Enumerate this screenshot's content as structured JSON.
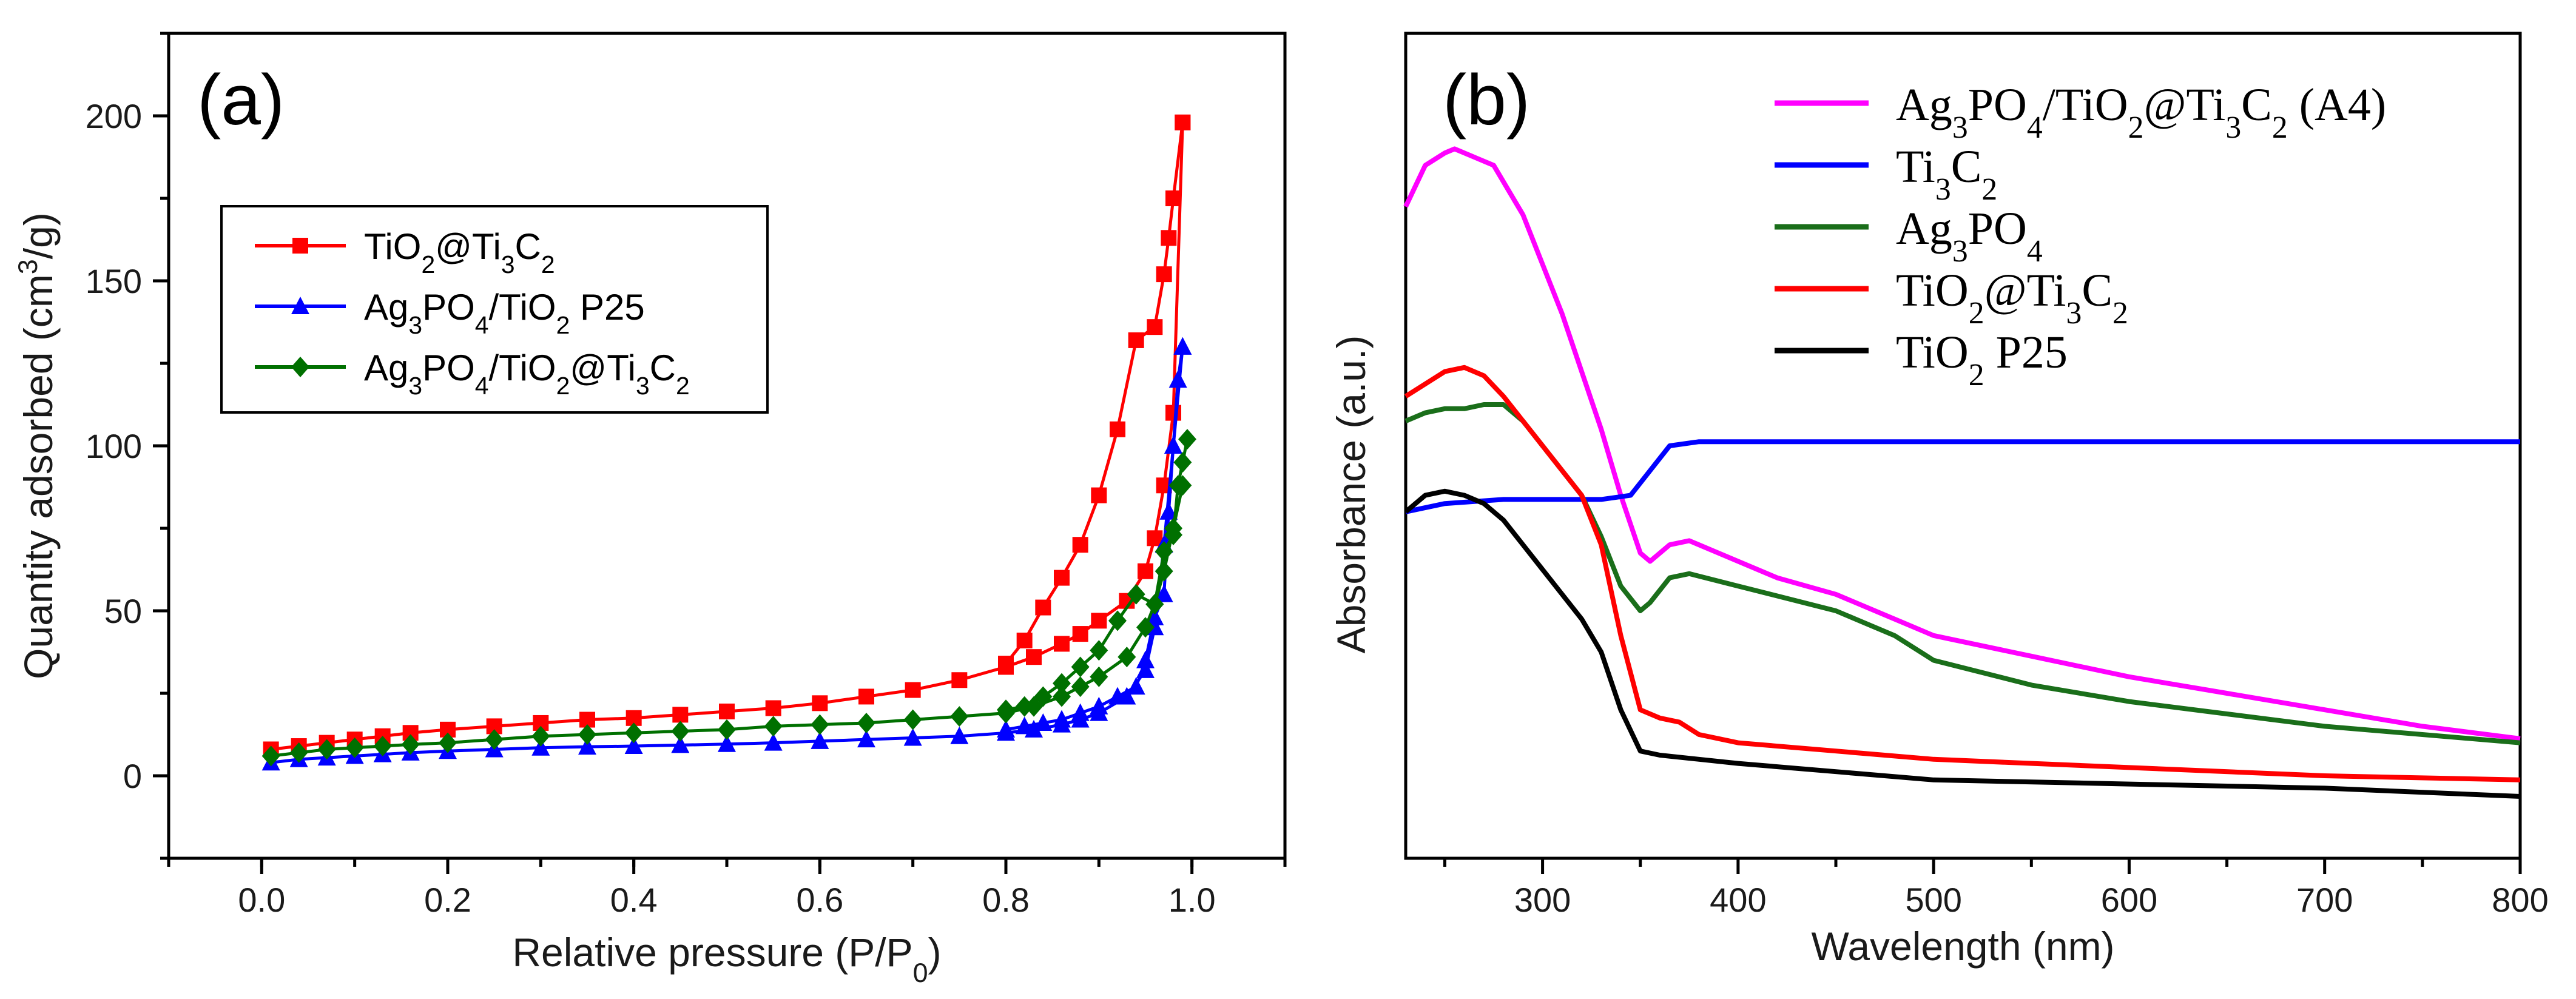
{
  "chart_data": [
    {
      "type": "line",
      "panel_label": "(a)",
      "xlabel": "Relative pressure (P/P",
      "xlabel_sub": "0",
      "xlabel_end": ")",
      "ylabel_parts": [
        {
          "t": "Quantity adsorbed (cm",
          "s": "n"
        },
        {
          "t": "3",
          "s": "sup"
        },
        {
          "t": "/g)",
          "s": "n"
        }
      ],
      "xlim": [
        -0.1,
        1.1
      ],
      "ylim": [
        -25,
        225
      ],
      "xticks": [
        0.0,
        0.2,
        0.4,
        0.6,
        0.8,
        1.0
      ],
      "xtick_labels": [
        "0.0",
        "0.2",
        "0.4",
        "0.6",
        "0.8",
        "1.0"
      ],
      "yticks": [
        0,
        50,
        100,
        150,
        200
      ],
      "ytick_labels": [
        "0",
        "50",
        "100",
        "150",
        "200"
      ],
      "legend_position": "upper-left",
      "series": [
        {
          "name": "TiO2@Ti3C2",
          "label_parts": [
            {
              "t": "TiO",
              "s": "n"
            },
            {
              "t": "2",
              "s": "sub"
            },
            {
              "t": "@Ti",
              "s": "n"
            },
            {
              "t": "3",
              "s": "sub"
            },
            {
              "t": "C",
              "s": "n"
            },
            {
              "t": "2",
              "s": "sub"
            }
          ],
          "color": "#ff0000",
          "marker": "square",
          "adsorption": {
            "x": [
              0.01,
              0.04,
              0.07,
              0.1,
              0.13,
              0.16,
              0.2,
              0.25,
              0.3,
              0.35,
              0.4,
              0.45,
              0.5,
              0.55,
              0.6,
              0.65,
              0.7,
              0.75,
              0.8,
              0.83,
              0.86,
              0.88,
              0.9,
              0.93,
              0.95,
              0.96,
              0.97,
              0.98,
              0.99
            ],
            "y": [
              8,
              9,
              10,
              11,
              12,
              13,
              14,
              15,
              16,
              17,
              17.5,
              18.5,
              19.5,
              20.5,
              22,
              24,
              26,
              29,
              33,
              36,
              40,
              43,
              47,
              53,
              62,
              72,
              88,
              110,
              198
            ]
          },
          "desorption": {
            "x": [
              0.99,
              0.98,
              0.975,
              0.97,
              0.96,
              0.94,
              0.92,
              0.9,
              0.88,
              0.86,
              0.84,
              0.82,
              0.8
            ],
            "y": [
              198,
              175,
              163,
              152,
              136,
              132,
              105,
              85,
              70,
              60,
              51,
              41,
              34
            ]
          }
        },
        {
          "name": "Ag3PO4/TiO2 P25",
          "label_parts": [
            {
              "t": "Ag",
              "s": "n"
            },
            {
              "t": "3",
              "s": "sub"
            },
            {
              "t": "PO",
              "s": "n"
            },
            {
              "t": "4",
              "s": "sub"
            },
            {
              "t": "/TiO",
              "s": "n"
            },
            {
              "t": "2",
              "s": "sub"
            },
            {
              "t": " P25",
              "s": "n"
            }
          ],
          "color": "#0000ff",
          "marker": "triangle",
          "adsorption": {
            "x": [
              0.01,
              0.04,
              0.07,
              0.1,
              0.13,
              0.16,
              0.2,
              0.25,
              0.3,
              0.35,
              0.4,
              0.45,
              0.5,
              0.55,
              0.6,
              0.65,
              0.7,
              0.75,
              0.8,
              0.83,
              0.86,
              0.88,
              0.9,
              0.93,
              0.95,
              0.96,
              0.97,
              0.98,
              0.99
            ],
            "y": [
              4,
              5,
              5.5,
              6,
              6.5,
              7,
              7.5,
              8,
              8.5,
              8.8,
              9,
              9.3,
              9.6,
              10,
              10.5,
              11,
              11.5,
              12,
              13,
              14,
              15.5,
              17,
              19,
              24,
              32,
              45,
              70,
              100,
              130
            ]
          },
          "desorption": {
            "x": [
              0.99,
              0.985,
              0.98,
              0.975,
              0.97,
              0.96,
              0.95,
              0.94,
              0.92,
              0.9,
              0.88,
              0.86,
              0.84,
              0.82,
              0.8
            ],
            "y": [
              130,
              120,
              100,
              80,
              55,
              48,
              35,
              27,
              24,
              21,
              19,
              17,
              16,
              15,
              14
            ]
          }
        },
        {
          "name": "Ag3PO4/TiO2@Ti3C2",
          "label_parts": [
            {
              "t": "Ag",
              "s": "n"
            },
            {
              "t": "3",
              "s": "sub"
            },
            {
              "t": "PO",
              "s": "n"
            },
            {
              "t": "4",
              "s": "sub"
            },
            {
              "t": "/TiO",
              "s": "n"
            },
            {
              "t": "2",
              "s": "sub"
            },
            {
              "t": "@Ti",
              "s": "n"
            },
            {
              "t": "3",
              "s": "sub"
            },
            {
              "t": "C",
              "s": "n"
            },
            {
              "t": "2",
              "s": "sub"
            }
          ],
          "color": "#007000",
          "marker": "diamond",
          "adsorption": {
            "x": [
              0.01,
              0.04,
              0.07,
              0.1,
              0.13,
              0.16,
              0.2,
              0.25,
              0.3,
              0.35,
              0.4,
              0.45,
              0.5,
              0.55,
              0.6,
              0.65,
              0.7,
              0.75,
              0.8,
              0.83,
              0.86,
              0.88,
              0.9,
              0.93,
              0.95,
              0.96,
              0.97,
              0.98,
              0.99
            ],
            "y": [
              6,
              7,
              8,
              8.5,
              9,
              9.5,
              10,
              11,
              12,
              12.5,
              13,
              13.5,
              14,
              15,
              15.5,
              16,
              17,
              18,
              19,
              21,
              24,
              27,
              30,
              36,
              45,
              52,
              62,
              75,
              88
            ]
          },
          "desorption": {
            "x": [
              0.995,
              0.99,
              0.985,
              0.98,
              0.97,
              0.96,
              0.94,
              0.92,
              0.9,
              0.88,
              0.86,
              0.84,
              0.82,
              0.8
            ],
            "y": [
              102,
              95,
              88,
              73,
              68,
              52,
              55,
              47,
              38,
              33,
              28,
              24,
              21,
              20
            ]
          }
        }
      ]
    },
    {
      "type": "line",
      "panel_label": "(b)",
      "xlabel": "Wavelength (nm)",
      "ylabel": "Absorbance (a.u.)",
      "xlim": [
        230,
        800
      ],
      "ylim": [
        0,
        1
      ],
      "xticks": [
        300,
        400,
        500,
        600,
        700,
        800
      ],
      "xtick_labels": [
        "300",
        "400",
        "500",
        "600",
        "700",
        "800"
      ],
      "yticks": [],
      "legend_position": "top-right",
      "series": [
        {
          "name": "Ag3PO4/TiO2@Ti3C2 (A4)",
          "label_parts": [
            {
              "t": "Ag",
              "s": "n"
            },
            {
              "t": "3",
              "s": "sub"
            },
            {
              "t": "PO",
              "s": "n"
            },
            {
              "t": "4",
              "s": "sub"
            },
            {
              "t": "/TiO",
              "s": "n"
            },
            {
              "t": "2",
              "s": "sub"
            },
            {
              "t": "@Ti",
              "s": "n"
            },
            {
              "t": "3",
              "s": "sub"
            },
            {
              "t": "C",
              "s": "n"
            },
            {
              "t": "2",
              "s": "sub"
            },
            {
              "t": " (A4)",
              "s": "n"
            }
          ],
          "color": "#ff00ff",
          "x": [
            230,
            240,
            250,
            255,
            265,
            275,
            290,
            300,
            310,
            320,
            330,
            340,
            350,
            355,
            365,
            375,
            390,
            420,
            450,
            480,
            500,
            550,
            600,
            650,
            700,
            750,
            800
          ],
          "y": [
            0.79,
            0.84,
            0.855,
            0.86,
            0.85,
            0.84,
            0.78,
            0.72,
            0.66,
            0.59,
            0.52,
            0.44,
            0.37,
            0.36,
            0.38,
            0.385,
            0.37,
            0.34,
            0.32,
            0.29,
            0.27,
            0.245,
            0.22,
            0.2,
            0.18,
            0.16,
            0.145
          ]
        },
        {
          "name": "Ti3C2",
          "label_parts": [
            {
              "t": "Ti",
              "s": "n"
            },
            {
              "t": "3",
              "s": "sub"
            },
            {
              "t": "C",
              "s": "n"
            },
            {
              "t": "2",
              "s": "sub"
            }
          ],
          "color": "#0000ff",
          "x": [
            230,
            250,
            280,
            300,
            330,
            345,
            355,
            365,
            380,
            400,
            500,
            600,
            700,
            800
          ],
          "y": [
            0.42,
            0.43,
            0.435,
            0.435,
            0.435,
            0.44,
            0.47,
            0.5,
            0.505,
            0.505,
            0.505,
            0.505,
            0.505,
            0.505
          ]
        },
        {
          "name": "Ag3PO4",
          "label_parts": [
            {
              "t": "Ag",
              "s": "n"
            },
            {
              "t": "3",
              "s": "sub"
            },
            {
              "t": "PO",
              "s": "n"
            },
            {
              "t": "4",
              "s": "sub"
            }
          ],
          "color": "#1a6e1a",
          "x": [
            230,
            240,
            250,
            260,
            270,
            280,
            290,
            300,
            310,
            320,
            330,
            340,
            350,
            355,
            365,
            375,
            400,
            450,
            480,
            500,
            550,
            600,
            650,
            700,
            750,
            800
          ],
          "y": [
            0.53,
            0.54,
            0.545,
            0.545,
            0.55,
            0.55,
            0.53,
            0.5,
            0.47,
            0.44,
            0.39,
            0.33,
            0.3,
            0.31,
            0.34,
            0.345,
            0.33,
            0.3,
            0.27,
            0.24,
            0.21,
            0.19,
            0.175,
            0.16,
            0.15,
            0.14
          ]
        },
        {
          "name": "TiO2@Ti3C2",
          "label_parts": [
            {
              "t": "TiO",
              "s": "n"
            },
            {
              "t": "2",
              "s": "sub"
            },
            {
              "t": "@Ti",
              "s": "n"
            },
            {
              "t": "3",
              "s": "sub"
            },
            {
              "t": "C",
              "s": "n"
            },
            {
              "t": "2",
              "s": "sub"
            }
          ],
          "color": "#ff0000",
          "x": [
            230,
            240,
            250,
            260,
            270,
            280,
            290,
            300,
            310,
            320,
            330,
            340,
            350,
            360,
            370,
            380,
            400,
            450,
            500,
            600,
            700,
            800
          ],
          "y": [
            0.56,
            0.575,
            0.59,
            0.595,
            0.585,
            0.56,
            0.53,
            0.5,
            0.47,
            0.44,
            0.38,
            0.27,
            0.18,
            0.17,
            0.165,
            0.15,
            0.14,
            0.13,
            0.12,
            0.11,
            0.1,
            0.095
          ]
        },
        {
          "name": "TiO2 P25",
          "label_parts": [
            {
              "t": "TiO",
              "s": "n"
            },
            {
              "t": "2",
              "s": "sub"
            },
            {
              "t": " P25",
              "s": "n"
            }
          ],
          "color": "#000000",
          "x": [
            230,
            240,
            250,
            260,
            270,
            280,
            290,
            300,
            310,
            320,
            330,
            340,
            350,
            360,
            380,
            400,
            450,
            500,
            600,
            700,
            800
          ],
          "y": [
            0.42,
            0.44,
            0.445,
            0.44,
            0.43,
            0.41,
            0.38,
            0.35,
            0.32,
            0.29,
            0.25,
            0.18,
            0.13,
            0.125,
            0.12,
            0.115,
            0.105,
            0.095,
            0.09,
            0.085,
            0.075
          ]
        }
      ]
    }
  ]
}
